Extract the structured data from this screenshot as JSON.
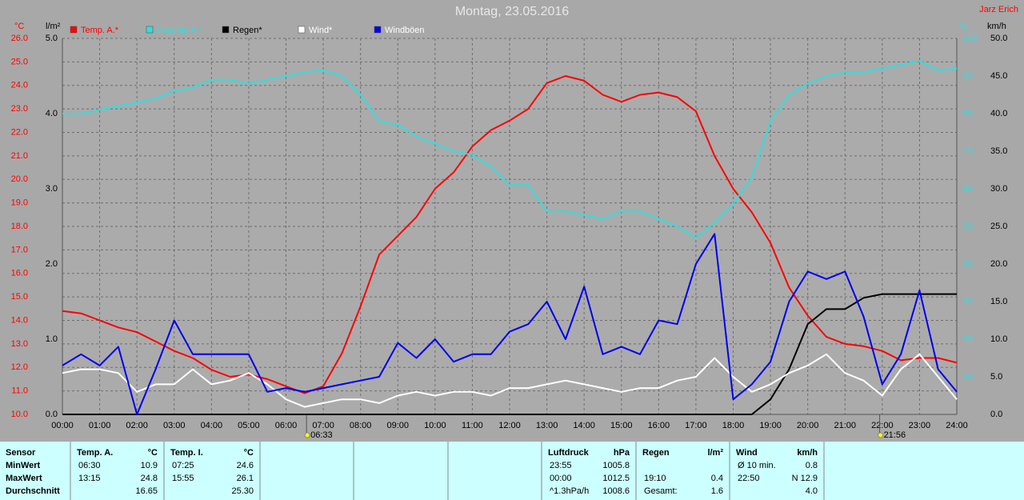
{
  "chart_data": {
    "type": "line",
    "title": "Montag, 23.05.2016",
    "author": "Jarz Erich",
    "xlim": [
      0,
      24
    ],
    "xticks": [
      {
        "value": 0,
        "label": "00:00"
      },
      {
        "value": 1,
        "label": "01:00"
      },
      {
        "value": 2,
        "label": "02:00"
      },
      {
        "value": 3,
        "label": "03:00"
      },
      {
        "value": 4,
        "label": "04:00"
      },
      {
        "value": 5,
        "label": "05:00"
      },
      {
        "value": 6,
        "label": "06:00"
      },
      {
        "value": 7,
        "label": "07:00"
      },
      {
        "value": 8,
        "label": "08:00"
      },
      {
        "value": 9,
        "label": "09:00"
      },
      {
        "value": 10,
        "label": "10:00"
      },
      {
        "value": 11,
        "label": "11:00"
      },
      {
        "value": 12,
        "label": "12:00"
      },
      {
        "value": 13,
        "label": "13:00"
      },
      {
        "value": 14,
        "label": "14:00"
      },
      {
        "value": 15,
        "label": "15:00"
      },
      {
        "value": 16,
        "label": "16:00"
      },
      {
        "value": 17,
        "label": "17:00"
      },
      {
        "value": 18,
        "label": "18:00"
      },
      {
        "value": 19,
        "label": "19:00"
      },
      {
        "value": 20,
        "label": "20:00"
      },
      {
        "value": 21,
        "label": "21:00"
      },
      {
        "value": 22,
        "label": "22:00"
      },
      {
        "value": 23,
        "label": "23:00"
      },
      {
        "value": 24,
        "label": "24:00"
      }
    ],
    "x": [
      0,
      0.5,
      1,
      1.5,
      2,
      2.5,
      3,
      3.5,
      4,
      4.5,
      5,
      5.5,
      6,
      6.5,
      7,
      7.5,
      8,
      8.5,
      9,
      9.5,
      10,
      10.5,
      11,
      11.5,
      12,
      12.5,
      13,
      13.5,
      14,
      14.5,
      15,
      15.5,
      16,
      16.5,
      17,
      17.5,
      18,
      18.5,
      19,
      19.5,
      20,
      20.5,
      21,
      21.5,
      22,
      22.5,
      23,
      23.5,
      24
    ],
    "y_label": "°C",
    "ylim": [
      10,
      26
    ],
    "yticks": [
      {
        "value": 10,
        "label": "10.0"
      },
      {
        "value": 11,
        "label": "11.0"
      },
      {
        "value": 12,
        "label": "12.0"
      },
      {
        "value": 13,
        "label": "13.0"
      },
      {
        "value": 14,
        "label": "14.0"
      },
      {
        "value": 15,
        "label": "15.0"
      },
      {
        "value": 16,
        "label": "16.0"
      },
      {
        "value": 17,
        "label": "17.0"
      },
      {
        "value": 18,
        "label": "18.0"
      },
      {
        "value": 19,
        "label": "19.0"
      },
      {
        "value": 20,
        "label": "20.0"
      },
      {
        "value": 21,
        "label": "21.0"
      },
      {
        "value": 22,
        "label": "22.0"
      },
      {
        "value": 23,
        "label": "23.0"
      },
      {
        "value": 24,
        "label": "24.0"
      },
      {
        "value": 25,
        "label": "25.0"
      },
      {
        "value": 26,
        "label": "26.0"
      }
    ],
    "y2_label": "l/m²",
    "y2lim": [
      0,
      5
    ],
    "y2ticks": [
      {
        "value": 0,
        "label": "0.0"
      },
      {
        "value": 1,
        "label": "1.0"
      },
      {
        "value": 2,
        "label": "2.0"
      },
      {
        "value": 3,
        "label": "3.0"
      },
      {
        "value": 4,
        "label": "4.0"
      },
      {
        "value": 5,
        "label": "5.0"
      }
    ],
    "y3_label": "%",
    "y3lim": [
      0,
      100
    ],
    "y3ticks": [
      10,
      20,
      30,
      40,
      50,
      60,
      70,
      80,
      90,
      100
    ],
    "y4_label": "km/h",
    "y4lim": [
      0,
      50
    ],
    "y4ticks": [
      {
        "value": 0,
        "label": "0.0"
      },
      {
        "value": 5,
        "label": "5.0"
      },
      {
        "value": 10,
        "label": "10.0"
      },
      {
        "value": 15,
        "label": "15.0"
      },
      {
        "value": 20,
        "label": "20.0"
      },
      {
        "value": 25,
        "label": "25.0"
      },
      {
        "value": 30,
        "label": "30.0"
      },
      {
        "value": 35,
        "label": "35.0"
      },
      {
        "value": 40,
        "label": "40.0"
      },
      {
        "value": 45,
        "label": "45.0"
      },
      {
        "value": 50,
        "label": "50.0"
      }
    ],
    "axis_colors": {
      "y": "#ff0000",
      "y2": "#000000",
      "y3": "#33dddd",
      "y4": "#000000"
    },
    "grid": true,
    "series": [
      {
        "name": "Temp. A.*",
        "color": "#ff0000",
        "axis": "y",
        "values": [
          14.4,
          14.3,
          14.0,
          13.7,
          13.5,
          13.1,
          12.7,
          12.4,
          11.9,
          11.6,
          11.7,
          11.5,
          11.2,
          10.9,
          11.2,
          12.6,
          14.6,
          16.8,
          17.6,
          18.4,
          19.6,
          20.3,
          21.4,
          22.1,
          22.5,
          23.0,
          24.1,
          24.4,
          24.2,
          23.6,
          23.3,
          23.6,
          23.7,
          23.5,
          22.9,
          21.0,
          19.6,
          18.6,
          17.3,
          15.4,
          14.2,
          13.3,
          13.0,
          12.9,
          12.7,
          12.3,
          12.4,
          12.4,
          12.2
        ]
      },
      {
        "name": "Feuchte A.*",
        "color": "#33dddd",
        "axis": "y3",
        "values": [
          80,
          80,
          81,
          82,
          83,
          84,
          86,
          87,
          89,
          89,
          88,
          89,
          90,
          91,
          91.5,
          90,
          85,
          78,
          77,
          74,
          72,
          70,
          69,
          66,
          61,
          61,
          54,
          54,
          53,
          52,
          54,
          54,
          52,
          50,
          47,
          51,
          56,
          63,
          78,
          85,
          88,
          90,
          91,
          91,
          92,
          93,
          94,
          91.5,
          92
        ]
      },
      {
        "name": "Regen*",
        "color": "#000000",
        "axis": "y2",
        "values": [
          0,
          0,
          0,
          0,
          0,
          0,
          0,
          0,
          0,
          0,
          0,
          0,
          0,
          0,
          0,
          0,
          0,
          0,
          0,
          0,
          0,
          0,
          0,
          0,
          0,
          0,
          0,
          0,
          0,
          0,
          0,
          0,
          0,
          0,
          0,
          0,
          0,
          0,
          0.2,
          0.6,
          1.2,
          1.4,
          1.4,
          1.55,
          1.6,
          1.6,
          1.6,
          1.6,
          1.6
        ]
      },
      {
        "name": "Wind*",
        "color": "#ffffff",
        "axis": "y4",
        "values": [
          5.5,
          6,
          6,
          5.5,
          3,
          4,
          4,
          6,
          4,
          4.5,
          5.5,
          4,
          2,
          1,
          1.5,
          2,
          2,
          1.5,
          2.5,
          3,
          2.5,
          3,
          3,
          2.5,
          3.5,
          3.5,
          4,
          4.5,
          4,
          3.5,
          3,
          3.5,
          3.5,
          4.5,
          5,
          7.5,
          5,
          3,
          4,
          5.5,
          6.5,
          8,
          5.5,
          4.5,
          2.5,
          6,
          8,
          5,
          2
        ]
      },
      {
        "name": "Windböen",
        "color": "#0000ee",
        "axis": "y4",
        "values": [
          6.5,
          8,
          6.5,
          9,
          0,
          6,
          12.5,
          8,
          8,
          8,
          8,
          3,
          3.5,
          3,
          3.5,
          4,
          4.5,
          5,
          9.5,
          7.5,
          10,
          7,
          8,
          8,
          11,
          12,
          15,
          10,
          17,
          8,
          9,
          8,
          12.5,
          12,
          20,
          24,
          2,
          4,
          7,
          15,
          19,
          18,
          19,
          13,
          4,
          8,
          16.5,
          6,
          3
        ]
      }
    ],
    "annotations": [
      {
        "x": 6.55,
        "label": "06:33"
      },
      {
        "x": 21.93,
        "label": "21:56"
      }
    ]
  },
  "table": {
    "row_labels": [
      "Sensor",
      "MinWert",
      "MaxWert",
      "Durchschnitt"
    ],
    "columns": [
      {
        "title": "Temp. A.",
        "unit": "°C",
        "rows": [
          [
            "06:30",
            "10.9"
          ],
          [
            "13:15",
            "24.8"
          ],
          [
            null,
            "16.65"
          ]
        ]
      },
      {
        "title": "Temp. I.",
        "unit": "°C",
        "rows": [
          [
            "07:25",
            "24.6"
          ],
          [
            "15:55",
            "26.1"
          ],
          [
            null,
            "25.30"
          ]
        ]
      },
      {
        "title": "Luftdruck",
        "unit": "hPa",
        "rows": [
          [
            "23:55",
            "1005.8"
          ],
          [
            "00:00",
            "1012.5"
          ],
          [
            "^1.3hPa/h",
            "1008.6"
          ]
        ]
      },
      {
        "title": "Regen",
        "unit": "l/m²",
        "rows": [
          [
            null,
            null
          ],
          [
            "19:10",
            "0.4"
          ],
          [
            "Gesamt:",
            "1.6"
          ]
        ]
      },
      {
        "title": "Wind",
        "unit": "km/h",
        "rows": [
          [
            "Ø 10 min.",
            "0.8"
          ],
          [
            "22:50",
            "N 12.9"
          ],
          [
            null,
            "4.0"
          ]
        ]
      }
    ]
  }
}
